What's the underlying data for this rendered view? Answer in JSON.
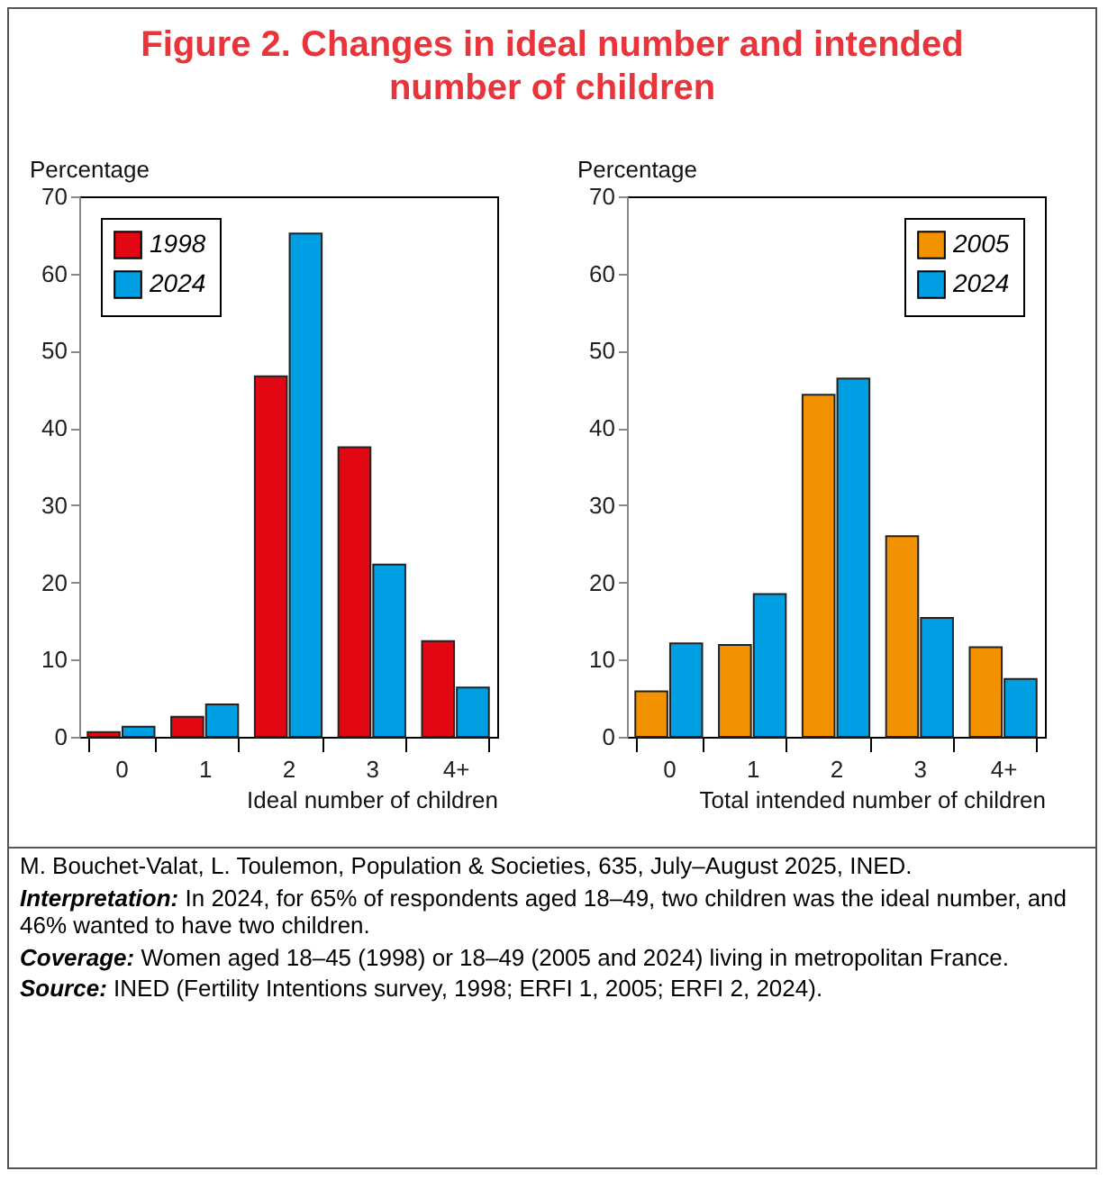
{
  "chart_data": [
    {
      "type": "bar",
      "title": "Figure 2. Changes in ideal number and intended number of children",
      "xlabel": "Ideal number of children",
      "ylabel": "Percentage",
      "categories": [
        "0",
        "1",
        "2",
        "3",
        "4+"
      ],
      "series": [
        {
          "name": "1998",
          "color": "#e30613",
          "values": [
            0.6,
            2.6,
            46.7,
            37.5,
            12.4
          ]
        },
        {
          "name": "2024",
          "color": "#009fe3",
          "values": [
            1.3,
            4.2,
            65.2,
            22.3,
            6.4
          ]
        }
      ],
      "ylim": [
        0,
        70
      ],
      "yticks": [
        0,
        10,
        20,
        30,
        40,
        50,
        60,
        70
      ],
      "grid": false,
      "legend": "top left",
      "annotations": [
        "M. Bouchet-Valat, L. Toulemon, Population & Societies, 635, July–August 2025, INED.",
        "Interpretation: In 2024, for 65% of respondents aged 18–49, two children was the ideal number, and 46% wanted to have two children.",
        "Coverage: Women aged 18–45 (1998) or 18–49 (2005 and 2024) living in metropolitan France.",
        "Source: INED (Fertility Intentions survey, 1998; ERFI 1, 2005; ERFI 2, 2024)."
      ]
    },
    {
      "type": "bar",
      "xlabel": "Total intended number of children",
      "ylabel": "Percentage",
      "categories": [
        "0",
        "1",
        "2",
        "3",
        "4+"
      ],
      "series": [
        {
          "name": "2005",
          "color": "#f39200",
          "values": [
            5.9,
            11.9,
            44.3,
            26.0,
            11.6
          ]
        },
        {
          "name": "2024",
          "color": "#009fe3",
          "values": [
            12.1,
            18.5,
            46.4,
            15.4,
            7.5
          ]
        }
      ],
      "ylim": [
        0,
        70
      ],
      "yticks": [
        0,
        10,
        20,
        30,
        40,
        50,
        60,
        70
      ],
      "grid": false,
      "legend": "top right"
    }
  ]
}
